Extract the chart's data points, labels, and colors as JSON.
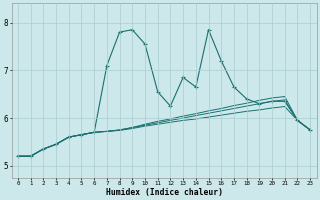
{
  "xlabel": "Humidex (Indice chaleur)",
  "bg_color": "#cce8ea",
  "grid_color": "#aacdd0",
  "line_color": "#1a7070",
  "xlim": [
    -0.5,
    23.5
  ],
  "ylim": [
    4.75,
    8.4
  ],
  "xticks": [
    0,
    1,
    2,
    3,
    4,
    5,
    6,
    7,
    8,
    9,
    10,
    11,
    12,
    13,
    14,
    15,
    16,
    17,
    18,
    19,
    20,
    21,
    22,
    23
  ],
  "yticks": [
    5,
    6,
    7,
    8
  ],
  "line1_x": [
    0,
    1,
    2,
    3,
    4,
    5,
    6,
    7,
    8,
    9,
    10,
    11,
    12,
    13,
    14,
    15,
    16,
    17,
    18,
    19,
    20,
    21,
    22,
    23
  ],
  "line1_y": [
    5.2,
    5.2,
    5.35,
    5.45,
    5.6,
    5.65,
    5.7,
    7.1,
    7.8,
    7.85,
    7.55,
    6.55,
    6.25,
    6.85,
    6.65,
    7.85,
    7.2,
    6.65,
    6.4,
    6.3,
    6.35,
    6.35,
    5.95,
    5.75
  ],
  "line2_x": [
    0,
    1,
    2,
    3,
    4,
    5,
    6,
    7,
    8,
    9,
    10,
    11,
    12,
    13,
    14,
    15,
    16,
    17,
    18,
    19,
    20,
    21,
    22,
    23
  ],
  "line2_y": [
    5.2,
    5.2,
    5.35,
    5.45,
    5.6,
    5.65,
    5.7,
    5.72,
    5.75,
    5.8,
    5.87,
    5.93,
    5.98,
    6.04,
    6.09,
    6.15,
    6.2,
    6.26,
    6.31,
    6.37,
    6.42,
    6.45,
    5.95,
    5.75
  ],
  "line3_x": [
    0,
    1,
    2,
    3,
    4,
    5,
    6,
    7,
    8,
    9,
    10,
    11,
    12,
    13,
    14,
    15,
    16,
    17,
    18,
    19,
    20,
    21,
    22,
    23
  ],
  "line3_y": [
    5.2,
    5.2,
    5.35,
    5.45,
    5.6,
    5.65,
    5.7,
    5.72,
    5.75,
    5.8,
    5.85,
    5.9,
    5.95,
    6.0,
    6.05,
    6.1,
    6.15,
    6.2,
    6.25,
    6.3,
    6.35,
    6.38,
    5.95,
    5.75
  ],
  "line4_x": [
    0,
    1,
    2,
    3,
    4,
    5,
    6,
    7,
    8,
    9,
    10,
    11,
    12,
    13,
    14,
    15,
    16,
    17,
    18,
    19,
    20,
    21,
    22,
    23
  ],
  "line4_y": [
    5.2,
    5.2,
    5.35,
    5.45,
    5.6,
    5.65,
    5.7,
    5.72,
    5.74,
    5.78,
    5.83,
    5.87,
    5.91,
    5.95,
    5.98,
    6.02,
    6.06,
    6.1,
    6.14,
    6.17,
    6.21,
    6.24,
    5.95,
    5.75
  ]
}
